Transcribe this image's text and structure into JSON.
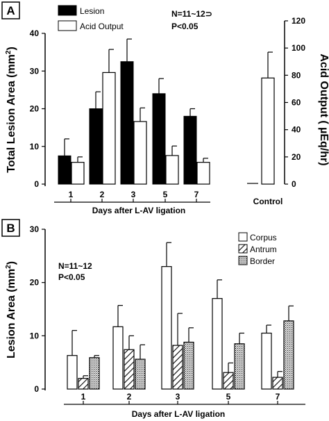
{
  "chart_data": [
    {
      "panel_label": "A",
      "type": "bar",
      "categories": [
        "1",
        "2",
        "3",
        "5",
        "7"
      ],
      "series": [
        {
          "name": "Lesion",
          "axis": "left",
          "values": [
            7.5,
            20,
            32.5,
            24,
            18
          ],
          "errors": [
            4.5,
            4.5,
            6,
            4,
            2
          ],
          "color": "#000000"
        },
        {
          "name": "Acid Output",
          "axis": "right",
          "values": [
            16,
            82,
            46,
            21,
            16
          ],
          "errors": [
            4,
            17,
            10,
            7,
            3
          ],
          "color": "#ffffff"
        }
      ],
      "control": {
        "label": "Control",
        "lesion": 0,
        "acid_output": 78,
        "acid_output_error": 19
      },
      "xlabel": "Days after L-AV ligation",
      "ylabel": "Total Lesion Area (mm²)",
      "ylabel_parts": {
        "pre": "Total Lesion Area (mm",
        "sup": "2",
        "post": ")"
      },
      "ylabel_right": "Acid Output ( µEq/hr)",
      "ylim": [
        0,
        40
      ],
      "yticks": [
        "0",
        "10",
        "20",
        "30",
        "40"
      ],
      "ylim_right": [
        0,
        120
      ],
      "yticks_right": [
        "0",
        "20",
        "40",
        "60",
        "80",
        "100",
        "120"
      ],
      "annotation": [
        "N=11~12⊃",
        "P<0.05"
      ]
    },
    {
      "panel_label": "B",
      "type": "bar",
      "categories": [
        "1",
        "2",
        "3",
        "5",
        "7"
      ],
      "series": [
        {
          "name": "Corpus",
          "values": [
            6.3,
            11.7,
            23,
            17,
            10.5
          ],
          "errors": [
            4.7,
            4,
            4.5,
            3.5,
            1.5
          ],
          "fill": "white"
        },
        {
          "name": "Antrum",
          "values": [
            2,
            7.4,
            8.2,
            3.1,
            2.2
          ],
          "errors": [
            0.5,
            2.6,
            6,
            1.8,
            1.1
          ],
          "fill": "hatched"
        },
        {
          "name": "Border",
          "values": [
            5.9,
            5.6,
            8.8,
            8.5,
            12.8
          ],
          "errors": [
            0.4,
            2.7,
            2.7,
            2,
            2.8
          ],
          "fill": "stippled"
        }
      ],
      "xlabel": "Days after L-AV ligation",
      "ylabel": "Lesion Area (mm²)",
      "ylabel_parts": {
        "pre": "Lesion Area (mm",
        "sup": "2",
        "post": ")"
      },
      "ylim": [
        0,
        30
      ],
      "yticks": [
        "0",
        "10",
        "20",
        "30"
      ],
      "annotation": [
        "N=11~12",
        "P<0.05"
      ]
    }
  ]
}
